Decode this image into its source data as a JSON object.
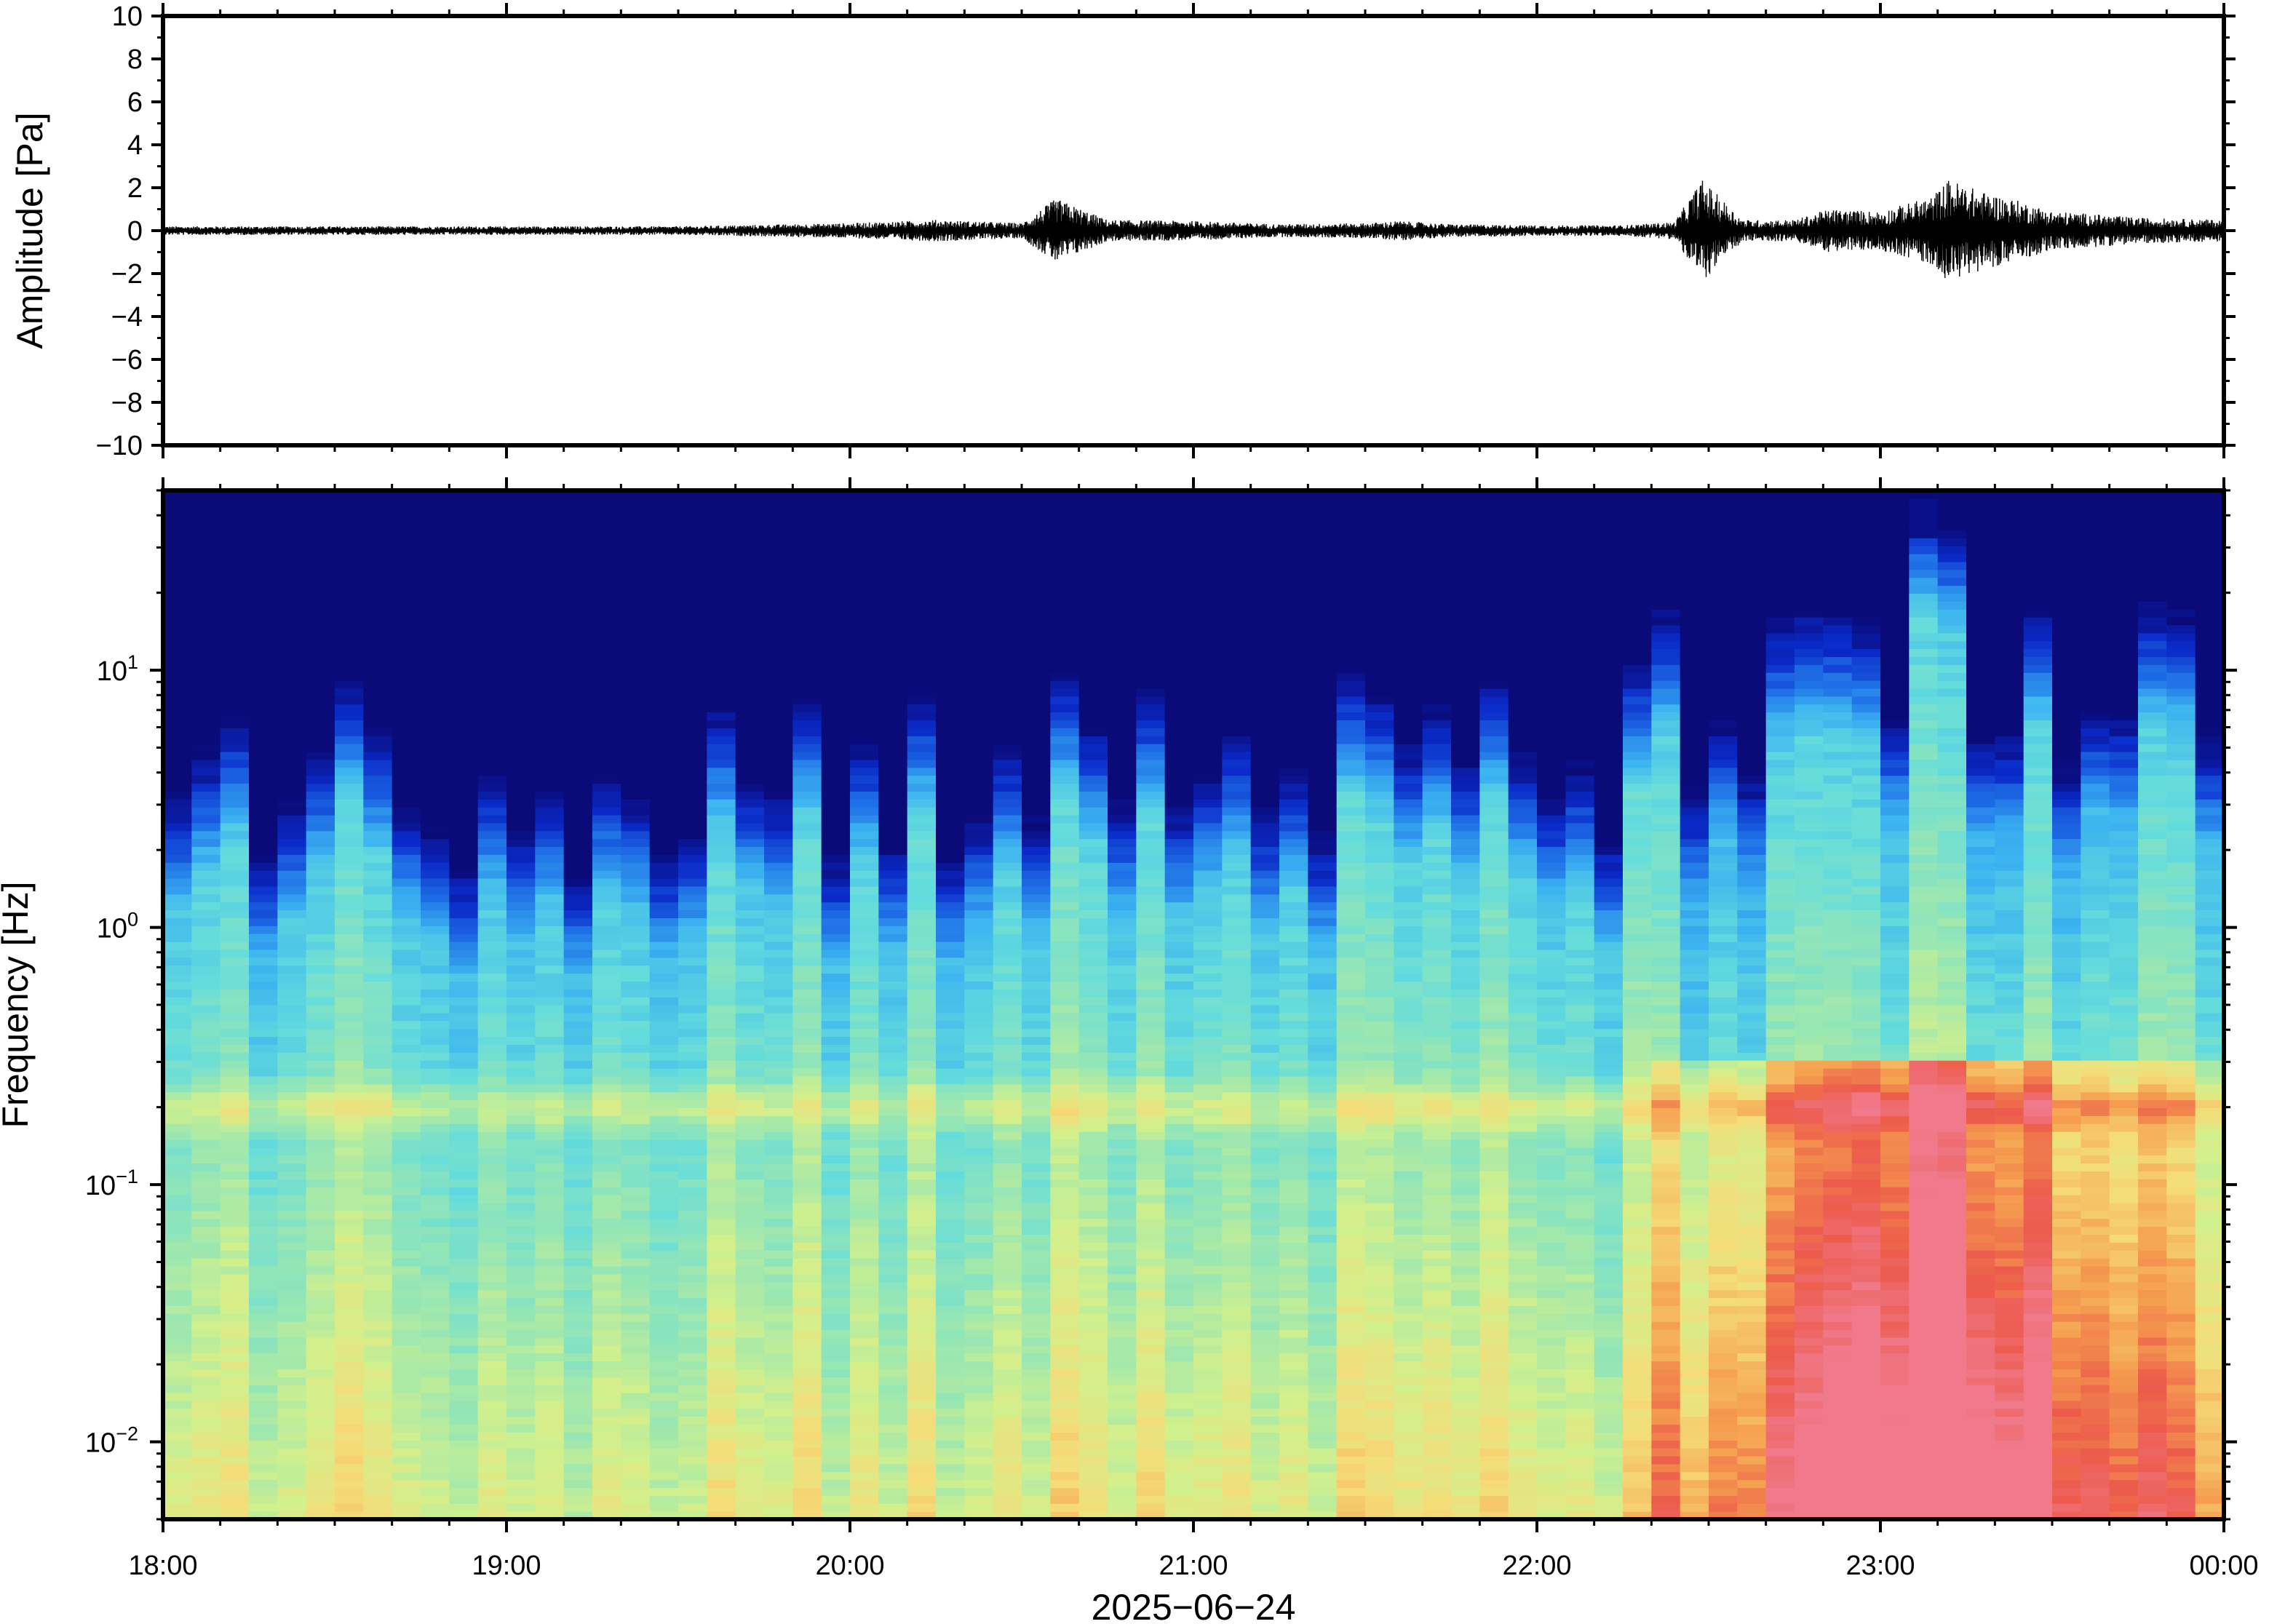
{
  "chart_data": [
    {
      "type": "line",
      "panel": "waveform",
      "ylabel": "Amplitude [Pa]",
      "ylim": [
        -10,
        10
      ],
      "yticks": [
        -10,
        -8,
        -6,
        -4,
        -2,
        0,
        2,
        4,
        6,
        8,
        10
      ],
      "ytick_labels": [
        "−10",
        "−8",
        "−6",
        "−4",
        "−2",
        "0",
        "2",
        "4",
        "6",
        "8",
        "10"
      ],
      "xlim": [
        "18:00",
        "00:00"
      ],
      "grid": false,
      "series": [
        {
          "color": "#000000",
          "x_hours": [
            18.0,
            18.5,
            19.0,
            19.5,
            20.0,
            20.25,
            20.5,
            20.6,
            20.75,
            21.0,
            21.25,
            21.5,
            21.6,
            21.75,
            22.0,
            22.25,
            22.4,
            22.48,
            22.6,
            22.75,
            22.85,
            23.0,
            23.15,
            23.2,
            23.3,
            23.4,
            23.5,
            23.6,
            23.75,
            24.0
          ],
          "y_envelope_pa": [
            0.2,
            0.2,
            0.2,
            0.2,
            0.35,
            0.5,
            0.35,
            1.5,
            0.5,
            0.45,
            0.3,
            0.35,
            0.45,
            0.3,
            0.25,
            0.25,
            0.4,
            2.4,
            0.5,
            0.5,
            1.0,
            0.9,
            1.6,
            2.4,
            1.8,
            1.4,
            0.9,
            0.8,
            0.6,
            0.5
          ]
        }
      ]
    },
    {
      "type": "heatmap",
      "panel": "spectrogram",
      "ylabel": "Frequency [Hz]",
      "xlabel": "2025−06−24",
      "yscale": "log",
      "ylim_hz": [
        0.005,
        50
      ],
      "yticks_hz": [
        0.01,
        0.1,
        1,
        10
      ],
      "ytick_labels": [
        {
          "base": "10",
          "exp": "−2"
        },
        {
          "base": "10",
          "exp": "−1"
        },
        {
          "base": "10",
          "exp": "0"
        },
        {
          "base": "10",
          "exp": "1"
        }
      ],
      "x_tick_labels": [
        "18:00",
        "19:00",
        "20:00",
        "21:00",
        "22:00",
        "23:00",
        "00:00"
      ],
      "colormap": "jet-like (dark blue = low power, red/pink = high power)",
      "colormap_stops": [
        "#0a0a78",
        "#0a2ac8",
        "#1e6ee6",
        "#3cb4f0",
        "#64dcdc",
        "#96e6b4",
        "#d2f08c",
        "#f5dc78",
        "#f5a050",
        "#ec5a4a",
        "#f07a8c"
      ],
      "features": [
        {
          "description": "persistent microbarom band",
          "frequency_hz": 0.2,
          "relative_level": 0.74
        },
        {
          "description": "broadband energy burst",
          "time_start": "22:20",
          "time_end": "00:00",
          "peak_time": "23:10",
          "frequency_range_hz": [
            0.005,
            0.3
          ]
        },
        {
          "description": "high-frequency column",
          "time": "23:10",
          "top_frequency_hz": 40
        }
      ]
    }
  ]
}
